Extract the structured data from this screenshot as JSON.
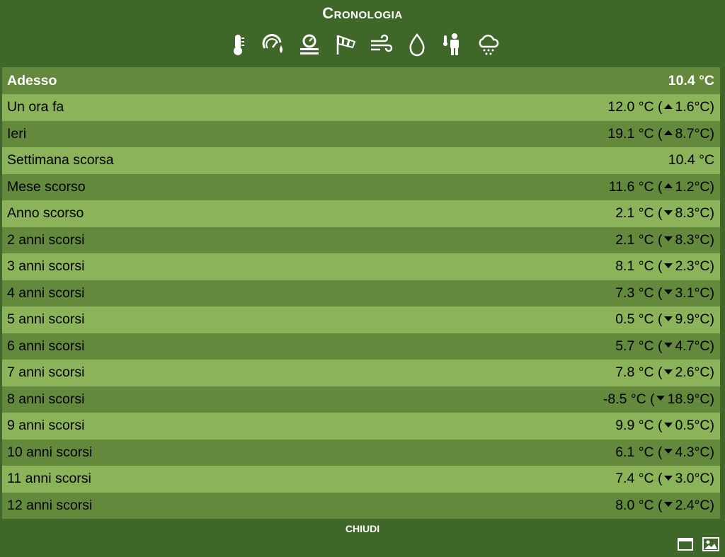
{
  "dialog": {
    "title": "Cronologia",
    "close_label": "CHIUDI"
  },
  "icons": [
    {
      "name": "thermometer-icon"
    },
    {
      "name": "dewpoint-gauge-icon"
    },
    {
      "name": "pressure-icon"
    },
    {
      "name": "windsock-icon"
    },
    {
      "name": "wind-icon"
    },
    {
      "name": "humidity-drop-icon"
    },
    {
      "name": "feels-like-icon"
    },
    {
      "name": "rain-cloud-icon"
    }
  ],
  "header": {
    "label": "Adesso",
    "value": "10.4 °C"
  },
  "rows": [
    {
      "label": "Un ora fa",
      "value": "12.0 °C (",
      "dir": "up",
      "delta": "1.6°C)"
    },
    {
      "label": "Ieri",
      "value": "19.1 °C (",
      "dir": "up",
      "delta": "8.7°C)"
    },
    {
      "label": "Settimana scorsa",
      "value": "10.4 °C",
      "dir": "none",
      "delta": ""
    },
    {
      "label": "Mese scorso",
      "value": "11.6 °C (",
      "dir": "up",
      "delta": "1.2°C)"
    },
    {
      "label": "Anno scorso",
      "value": "2.1 °C (",
      "dir": "down",
      "delta": "8.3°C)"
    },
    {
      "label": "2 anni scorsi",
      "value": "2.1 °C (",
      "dir": "down",
      "delta": "8.3°C)"
    },
    {
      "label": "3 anni scorsi",
      "value": "8.1 °C (",
      "dir": "down",
      "delta": "2.3°C)"
    },
    {
      "label": "4 anni scorsi",
      "value": "7.3 °C (",
      "dir": "down",
      "delta": "3.1°C)"
    },
    {
      "label": "5 anni scorsi",
      "value": "0.5 °C (",
      "dir": "down",
      "delta": "9.9°C)"
    },
    {
      "label": "6 anni scorsi",
      "value": "5.7 °C (",
      "dir": "down",
      "delta": "4.7°C)"
    },
    {
      "label": "7 anni scorsi",
      "value": "7.8 °C (",
      "dir": "down",
      "delta": "2.6°C)"
    },
    {
      "label": "8 anni scorsi",
      "value": "-8.5 °C (",
      "dir": "down",
      "delta": "18.9°C)"
    },
    {
      "label": "9 anni scorsi",
      "value": "9.9 °C (",
      "dir": "down",
      "delta": "0.5°C)"
    },
    {
      "label": "10 anni scorsi",
      "value": "6.1 °C (",
      "dir": "down",
      "delta": "4.3°C)"
    },
    {
      "label": "11 anni scorsi",
      "value": "7.4 °C (",
      "dir": "down",
      "delta": "3.0°C)"
    },
    {
      "label": "12 anni scorsi",
      "value": "8.0 °C (",
      "dir": "down",
      "delta": "2.4°C)"
    }
  ],
  "bottom_icons": [
    {
      "name": "window-icon"
    },
    {
      "name": "image-icon"
    }
  ],
  "colors": {
    "background": "#40672a",
    "row_dark": "#63893d",
    "row_light": "#8bb35a"
  }
}
